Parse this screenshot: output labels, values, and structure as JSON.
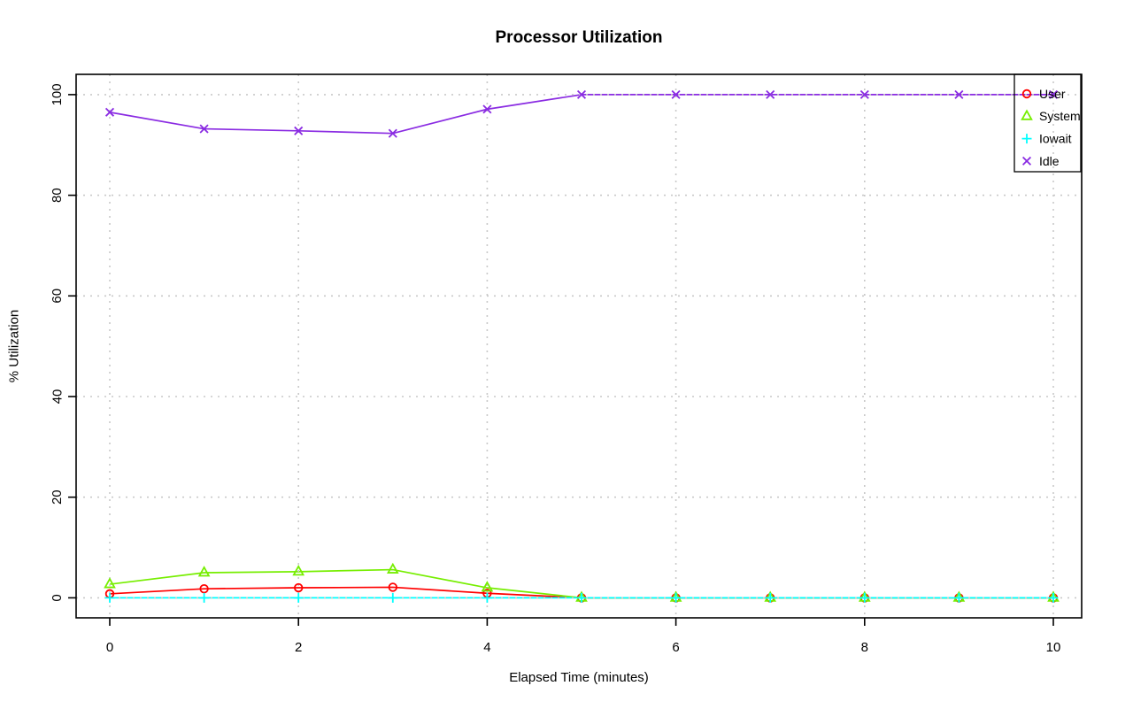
{
  "chart_data": {
    "type": "line",
    "title": "Processor Utilization",
    "xlabel": "Elapsed Time (minutes)",
    "ylabel": "% Utilization",
    "x": [
      0,
      1,
      2,
      3,
      4,
      5,
      6,
      7,
      8,
      9,
      10
    ],
    "x_ticks": [
      0,
      2,
      4,
      6,
      8,
      10
    ],
    "y_ticks": [
      0,
      20,
      40,
      60,
      80,
      100
    ],
    "xlim": [
      0,
      10
    ],
    "ylim": [
      0,
      100
    ],
    "grid": "dotted",
    "grid_color": "#c9c9c9",
    "axis_color": "#000000",
    "legend_position": "top-right",
    "legend_border": true,
    "series": [
      {
        "name": "User",
        "color": "#ff0000",
        "marker": "circle",
        "values": [
          0.8,
          1.8,
          2.0,
          2.1,
          0.9,
          0,
          0,
          0,
          0,
          0,
          0
        ]
      },
      {
        "name": "System",
        "color": "#76ee00",
        "marker": "triangle",
        "values": [
          2.7,
          5.0,
          5.2,
          5.6,
          2.0,
          0,
          0,
          0,
          0,
          0,
          0
        ]
      },
      {
        "name": "Iowait",
        "color": "#00ffff",
        "marker": "plus",
        "values": [
          0,
          0,
          0,
          0,
          0,
          0,
          0,
          0,
          0,
          0,
          0
        ]
      },
      {
        "name": "Idle",
        "color": "#8a2be2",
        "marker": "x",
        "values": [
          96.5,
          93.2,
          92.8,
          92.3,
          97.1,
          100,
          100,
          100,
          100,
          100,
          100
        ]
      }
    ]
  }
}
